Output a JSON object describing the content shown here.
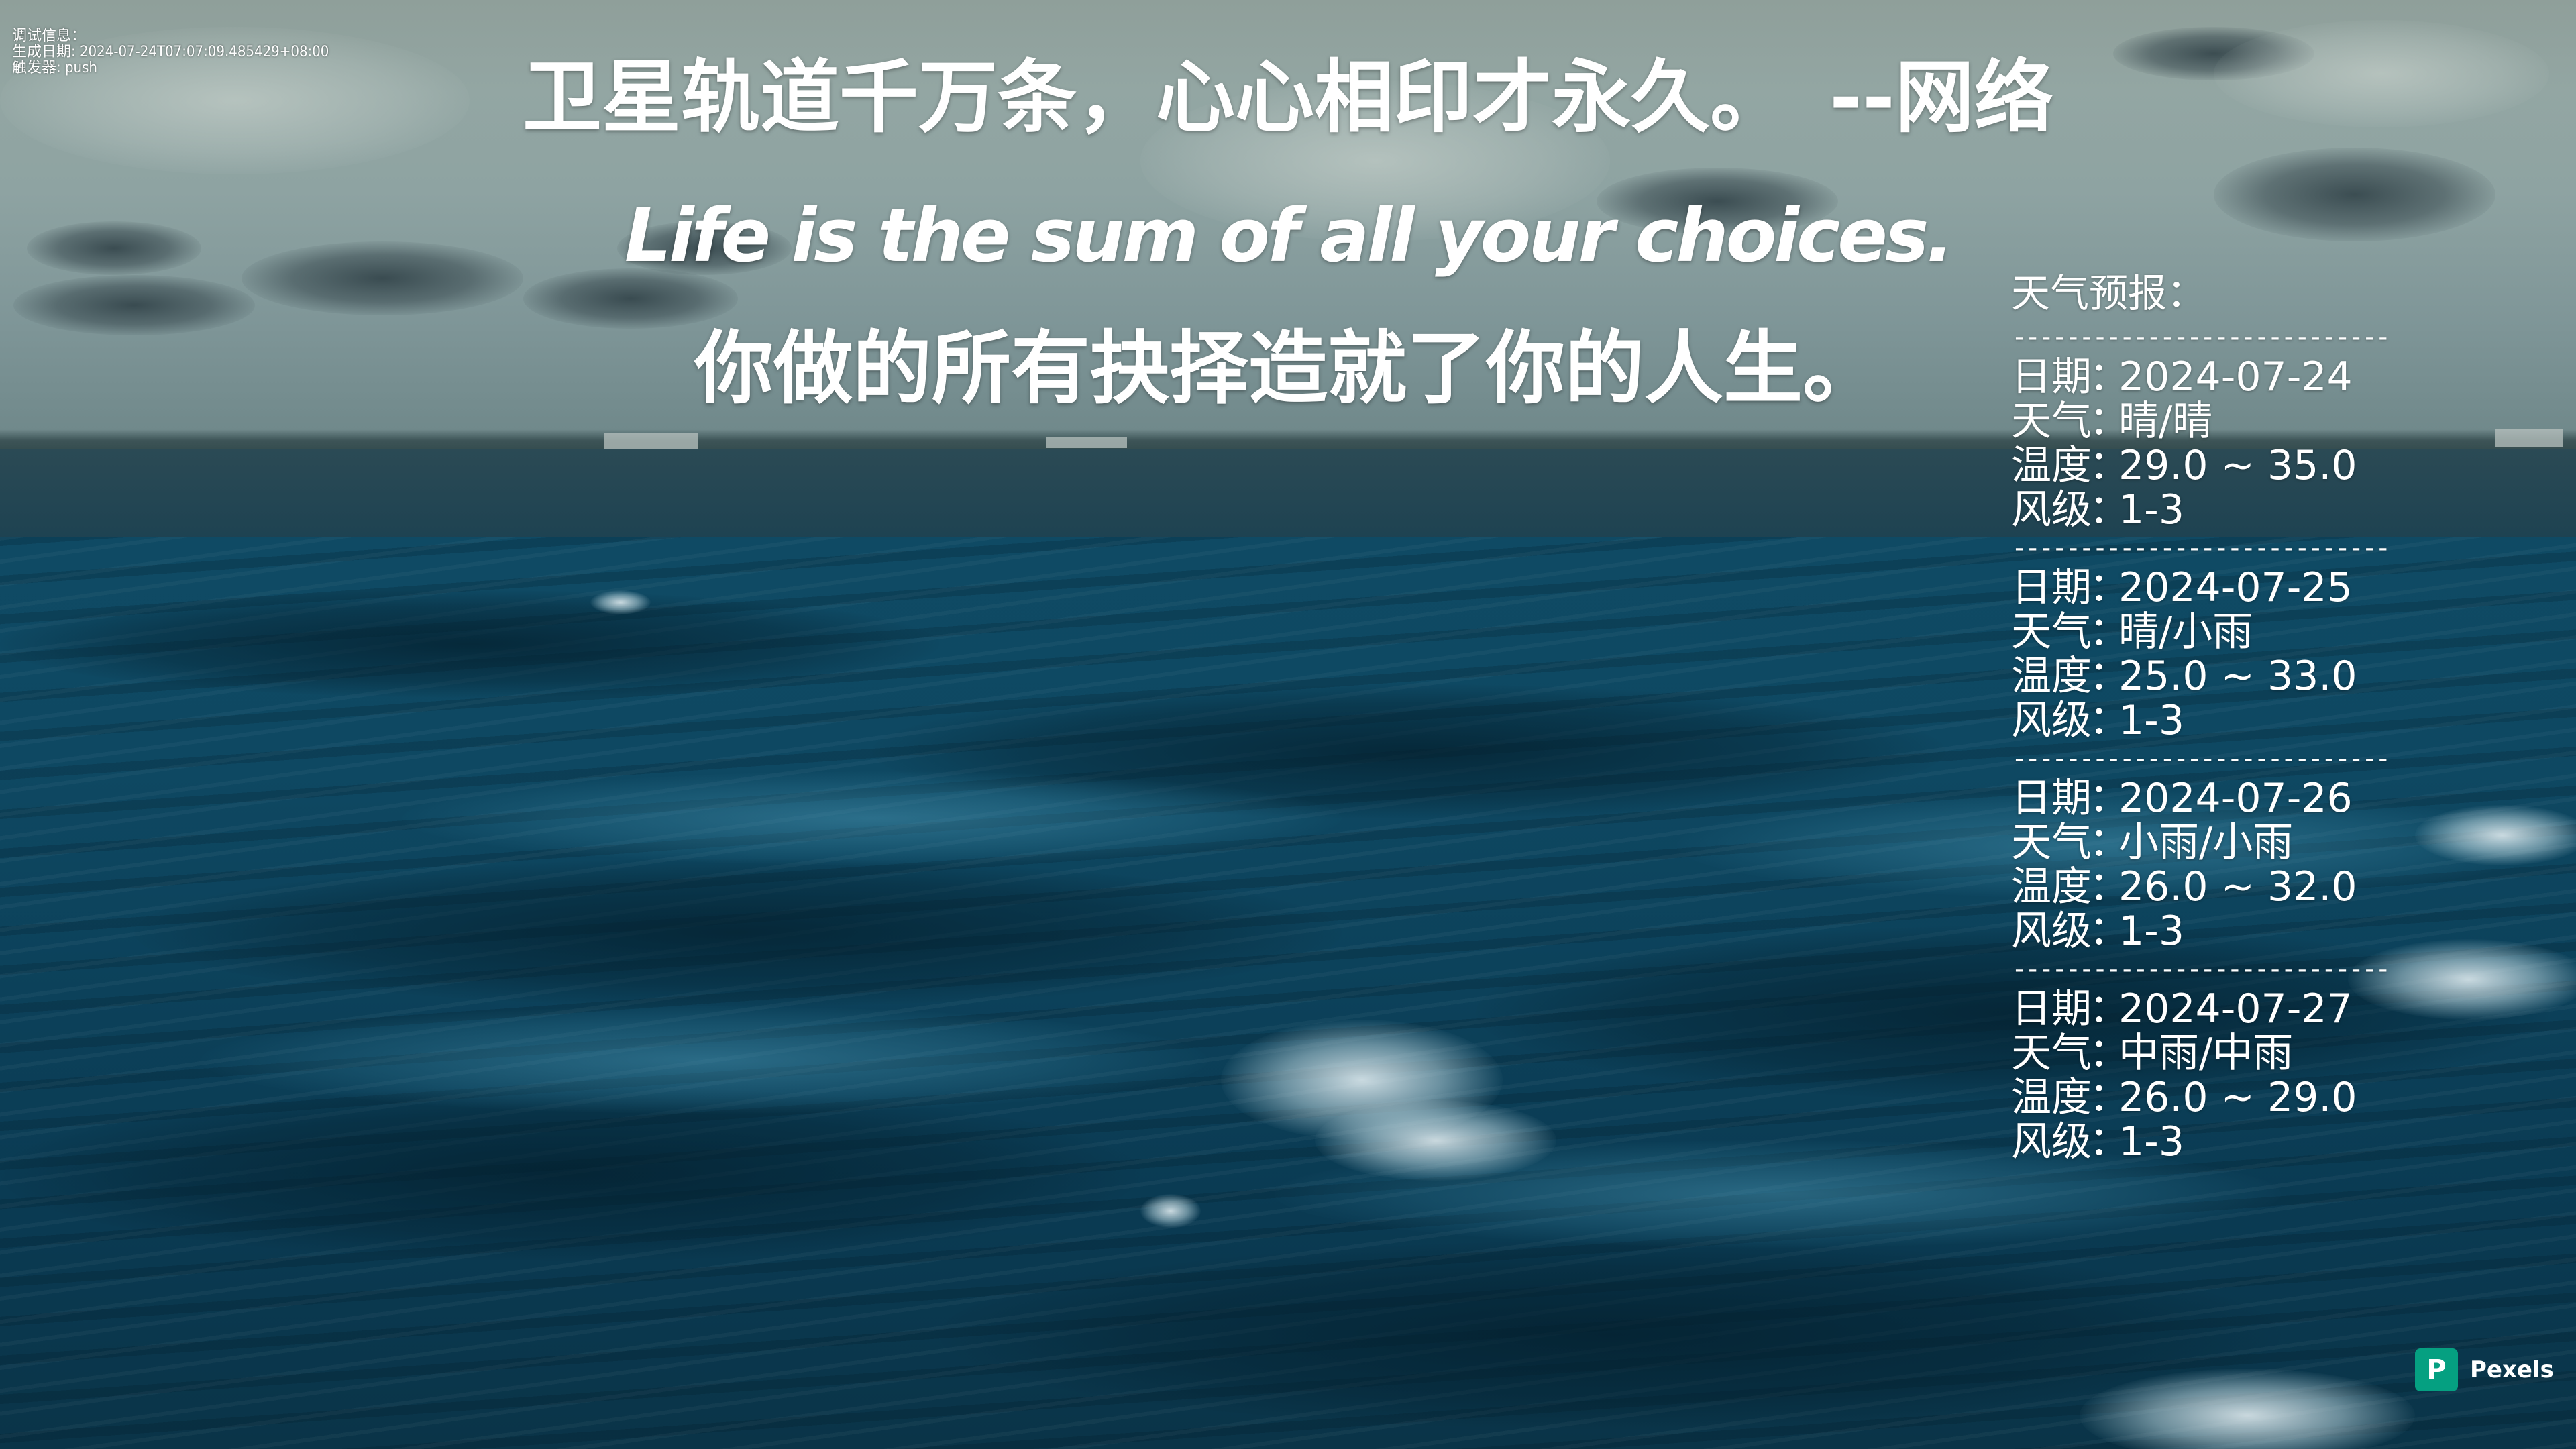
{
  "debug": {
    "title": "调试信息：",
    "generated_label": "生成日期:",
    "generated_value": "2024-07-24T07:07:09.485429+08:00",
    "trigger_label": "触发器:",
    "trigger_value": "push"
  },
  "quote": {
    "cn_line": "卫星轨道千万条，心心相印才永久。",
    "author": "--网络",
    "en_line": "Life is the sum of all your choices.",
    "cn_translation": "你做的所有抉择造就了你的人生。"
  },
  "weather": {
    "title": "天气预报：",
    "separator": "----------------------------",
    "labels": {
      "date": "日期",
      "weather": "天气",
      "temp": "温度",
      "wind": "风级",
      "colon": "："
    },
    "days": [
      {
        "date": "2024-07-24",
        "weather": "晴/晴",
        "temp": "29.0 ~ 35.0",
        "wind": "1-3"
      },
      {
        "date": "2024-07-25",
        "weather": "晴/小雨",
        "temp": "25.0 ~ 33.0",
        "wind": "1-3"
      },
      {
        "date": "2024-07-26",
        "weather": "小雨/小雨",
        "temp": "26.0 ~ 32.0",
        "wind": "1-3"
      },
      {
        "date": "2024-07-27",
        "weather": "中雨/中雨",
        "temp": "26.0 ~ 29.0",
        "wind": "1-3"
      }
    ]
  },
  "watermark": {
    "logo_letter": "P",
    "label": "Pexels",
    "color": "#05a081"
  },
  "icons": {
    "watermark": "pexels-logo-icon"
  }
}
